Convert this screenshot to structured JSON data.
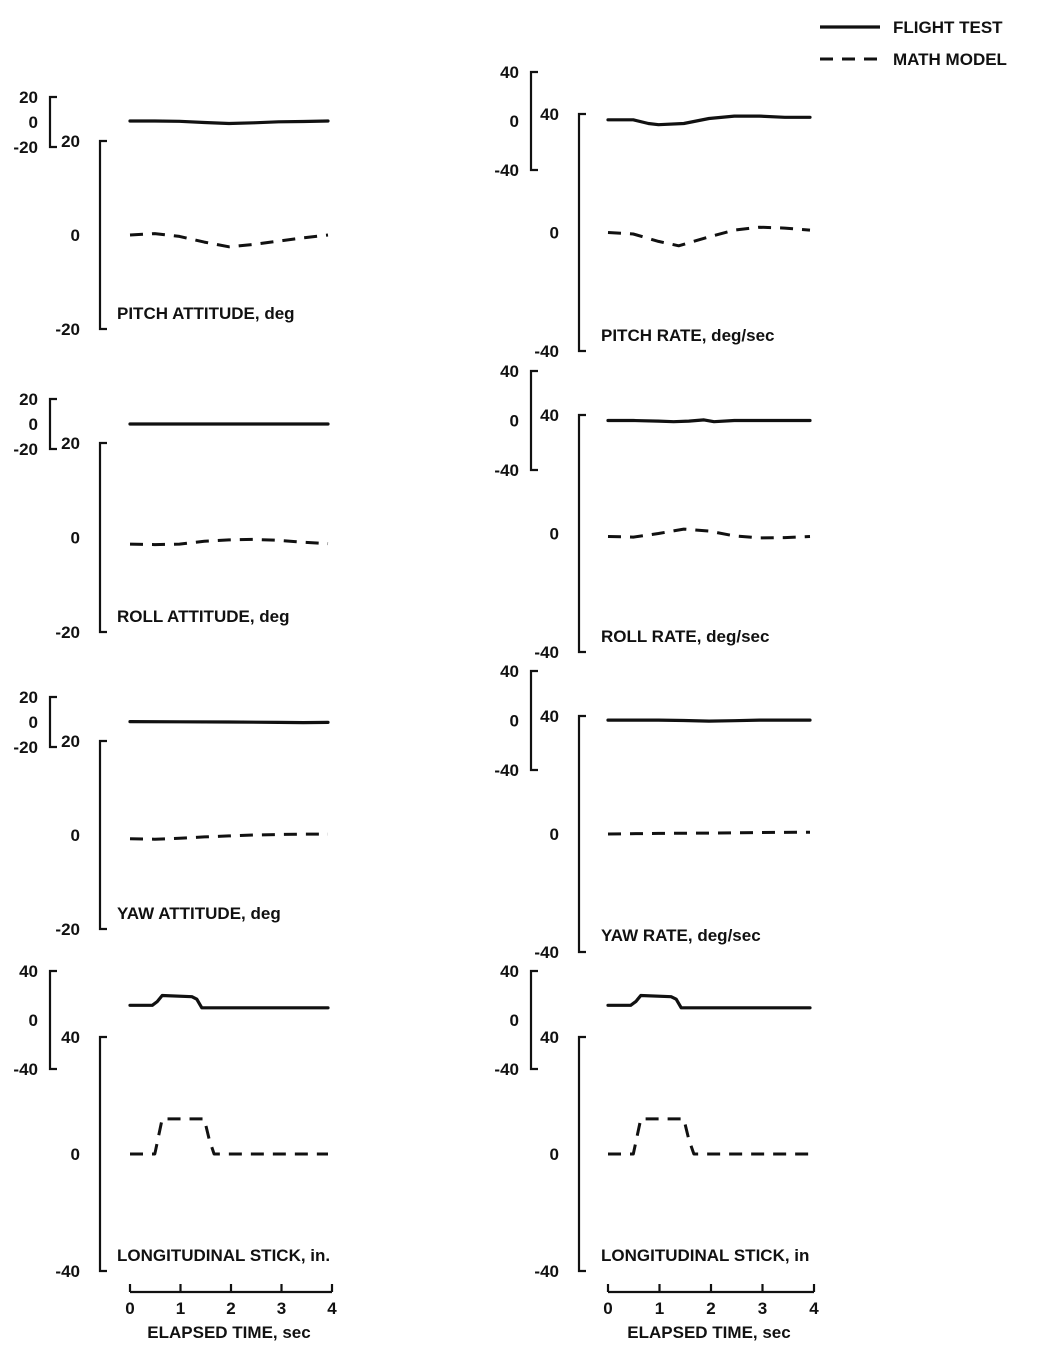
{
  "legend": {
    "flight_test": "FLIGHT TEST",
    "math_model": "MATH MODEL"
  },
  "time_axis": {
    "label": "ELAPSED TIME, sec",
    "ticks": [
      "0",
      "1",
      "2",
      "3",
      "4"
    ]
  },
  "chart_data": [
    {
      "type": "line",
      "title": "PITCH ATTITUDE, deg",
      "xlabel": "ELAPSED TIME, sec",
      "xlim": [
        0,
        4
      ],
      "flight_axis": {
        "ticks": [
          "20",
          "0",
          "-20"
        ],
        "ylim": [
          -20,
          20
        ]
      },
      "model_axis": {
        "ticks": [
          "20",
          "0",
          "-20"
        ],
        "ylim": [
          -20,
          20
        ]
      },
      "series": [
        {
          "name": "FLIGHT TEST",
          "x": [
            0,
            0.5,
            1.0,
            1.5,
            2.0,
            2.5,
            3.0,
            3.5,
            4.0
          ],
          "y": [
            0.8,
            0.8,
            0.6,
            -0.4,
            -1.2,
            -0.6,
            0.2,
            0.4,
            0.8
          ]
        },
        {
          "name": "MATH MODEL",
          "x": [
            0,
            0.5,
            1.0,
            1.5,
            2.0,
            2.5,
            3.0,
            3.5,
            4.0
          ],
          "y": [
            0.0,
            0.3,
            -0.3,
            -1.5,
            -2.5,
            -2.0,
            -1.3,
            -0.6,
            0.0
          ]
        }
      ]
    },
    {
      "type": "line",
      "title": "PITCH RATE, deg/sec",
      "xlabel": "ELAPSED TIME, sec",
      "xlim": [
        0,
        4
      ],
      "flight_axis": {
        "ticks": [
          "40",
          "0",
          "-40"
        ],
        "ylim": [
          -40,
          40
        ]
      },
      "model_axis": {
        "ticks": [
          "40",
          "0",
          "-40"
        ],
        "ylim": [
          -40,
          40
        ]
      },
      "series": [
        {
          "name": "FLIGHT TEST",
          "x": [
            0,
            0.5,
            0.8,
            1.0,
            1.5,
            2.0,
            2.5,
            3.0,
            3.5,
            4.0
          ],
          "y": [
            1,
            1,
            -2,
            -3,
            -2,
            2,
            4,
            4,
            3,
            3
          ]
        },
        {
          "name": "MATH MODEL",
          "x": [
            0,
            0.5,
            1.0,
            1.4,
            2.0,
            2.5,
            3.0,
            3.5,
            4.0
          ],
          "y": [
            0,
            -0.5,
            -3,
            -4.5,
            -1.5,
            0.8,
            1.8,
            1.5,
            0.8
          ]
        }
      ]
    },
    {
      "type": "line",
      "title": "ROLL ATTITUDE, deg",
      "xlabel": "ELAPSED TIME, sec",
      "xlim": [
        0,
        4
      ],
      "flight_axis": {
        "ticks": [
          "20",
          "0",
          "-20"
        ],
        "ylim": [
          -20,
          20
        ]
      },
      "model_axis": {
        "ticks": [
          "20",
          "0",
          "-20"
        ],
        "ylim": [
          -20,
          20
        ]
      },
      "series": [
        {
          "name": "FLIGHT TEST",
          "x": [
            0,
            1.0,
            2.0,
            3.0,
            4.0
          ],
          "y": [
            0.0,
            0.0,
            0.0,
            0.0,
            0.0
          ]
        },
        {
          "name": "MATH MODEL",
          "x": [
            0,
            0.5,
            1.0,
            1.5,
            2.0,
            2.5,
            3.0,
            3.5,
            4.0
          ],
          "y": [
            -1.4,
            -1.5,
            -1.4,
            -0.8,
            -0.5,
            -0.4,
            -0.6,
            -1.0,
            -1.3
          ]
        }
      ]
    },
    {
      "type": "line",
      "title": "ROLL RATE, deg/sec",
      "xlabel": "ELAPSED TIME, sec",
      "xlim": [
        0,
        4
      ],
      "flight_axis": {
        "ticks": [
          "40",
          "0",
          "-40"
        ],
        "ylim": [
          -40,
          40
        ]
      },
      "model_axis": {
        "ticks": [
          "40",
          "0",
          "-40"
        ],
        "ylim": [
          -40,
          40
        ]
      },
      "series": [
        {
          "name": "FLIGHT TEST",
          "x": [
            0,
            0.5,
            1.0,
            1.3,
            1.6,
            1.9,
            2.1,
            2.5,
            3.0,
            3.5,
            4.0
          ],
          "y": [
            0,
            0,
            -0.5,
            -1,
            -0.5,
            0.5,
            -1,
            0,
            0,
            0,
            0
          ]
        },
        {
          "name": "MATH MODEL",
          "x": [
            0,
            0.5,
            1.0,
            1.5,
            2.0,
            2.5,
            3.0,
            3.5,
            4.0
          ],
          "y": [
            -1,
            -1.2,
            0,
            1.5,
            0.8,
            -0.8,
            -1.5,
            -1.4,
            -1
          ]
        }
      ]
    },
    {
      "type": "line",
      "title": "YAW ATTITUDE, deg",
      "xlabel": "ELAPSED TIME, sec",
      "xlim": [
        0,
        4
      ],
      "flight_axis": {
        "ticks": [
          "20",
          "0",
          "-20"
        ],
        "ylim": [
          -20,
          20
        ]
      },
      "model_axis": {
        "ticks": [
          "20",
          "0",
          "-20"
        ],
        "ylim": [
          -20,
          20
        ]
      },
      "series": [
        {
          "name": "FLIGHT TEST",
          "x": [
            0,
            1.0,
            2.0,
            3.0,
            3.5,
            4.0
          ],
          "y": [
            0.3,
            0.2,
            0.0,
            -0.3,
            -0.5,
            -0.3
          ]
        },
        {
          "name": "MATH MODEL",
          "x": [
            0,
            0.5,
            1.0,
            1.5,
            2.0,
            2.5,
            3.0,
            3.5,
            4.0
          ],
          "y": [
            -0.8,
            -0.9,
            -0.7,
            -0.4,
            -0.2,
            0.0,
            0.1,
            0.2,
            0.2
          ]
        }
      ]
    },
    {
      "type": "line",
      "title": "YAW RATE, deg/sec",
      "xlabel": "ELAPSED TIME, sec",
      "xlim": [
        0,
        4
      ],
      "flight_axis": {
        "ticks": [
          "40",
          "0",
          "-40"
        ],
        "ylim": [
          -40,
          40
        ]
      },
      "model_axis": {
        "ticks": [
          "40",
          "0",
          "-40"
        ],
        "ylim": [
          -40,
          40
        ]
      },
      "series": [
        {
          "name": "FLIGHT TEST",
          "x": [
            0,
            1.0,
            1.5,
            2.0,
            2.5,
            3.0,
            4.0
          ],
          "y": [
            0.3,
            0.3,
            0,
            -0.5,
            -0.2,
            0.3,
            0.3
          ]
        },
        {
          "name": "MATH MODEL",
          "x": [
            0,
            1.0,
            2.0,
            3.0,
            4.0
          ],
          "y": [
            0.0,
            0.2,
            0.3,
            0.5,
            0.6
          ]
        }
      ]
    },
    {
      "type": "line",
      "title": "LONGITUDINAL STICK, in.",
      "xlabel": "ELAPSED TIME, sec",
      "xlim": [
        0,
        4
      ],
      "flight_axis": {
        "ticks": [
          "40",
          "0",
          "-40"
        ],
        "ylim": [
          -40,
          40
        ]
      },
      "model_axis": {
        "ticks": [
          "40",
          "0",
          "-40"
        ],
        "ylim": [
          -40,
          40
        ]
      },
      "series": [
        {
          "name": "FLIGHT TEST",
          "x": [
            0,
            0.45,
            0.55,
            0.65,
            1.25,
            1.35,
            1.45,
            2.0,
            4.0
          ],
          "y": [
            12,
            12,
            15,
            20,
            19,
            17,
            10,
            10,
            10
          ]
        },
        {
          "name": "MATH MODEL",
          "x": [
            0,
            0.5,
            0.65,
            1.5,
            1.6,
            1.7,
            4.0
          ],
          "y": [
            0,
            0,
            12,
            12,
            5,
            0,
            0
          ]
        }
      ]
    },
    {
      "type": "line",
      "title": "LONGITUDINAL STICK, in",
      "xlabel": "ELAPSED TIME, sec",
      "xlim": [
        0,
        4
      ],
      "flight_axis": {
        "ticks": [
          "40",
          "0",
          "-40"
        ],
        "ylim": [
          -40,
          40
        ]
      },
      "model_axis": {
        "ticks": [
          "40",
          "0",
          "-40"
        ],
        "ylim": [
          -40,
          40
        ]
      },
      "series": [
        {
          "name": "FLIGHT TEST",
          "x": [
            0,
            0.45,
            0.55,
            0.65,
            1.25,
            1.35,
            1.45,
            2.0,
            4.0
          ],
          "y": [
            12,
            12,
            15,
            20,
            19,
            17,
            10,
            10,
            10
          ]
        },
        {
          "name": "MATH MODEL",
          "x": [
            0,
            0.5,
            0.65,
            1.5,
            1.6,
            1.7,
            4.0
          ],
          "y": [
            0,
            0,
            12,
            12,
            5,
            0,
            0
          ]
        }
      ]
    }
  ]
}
